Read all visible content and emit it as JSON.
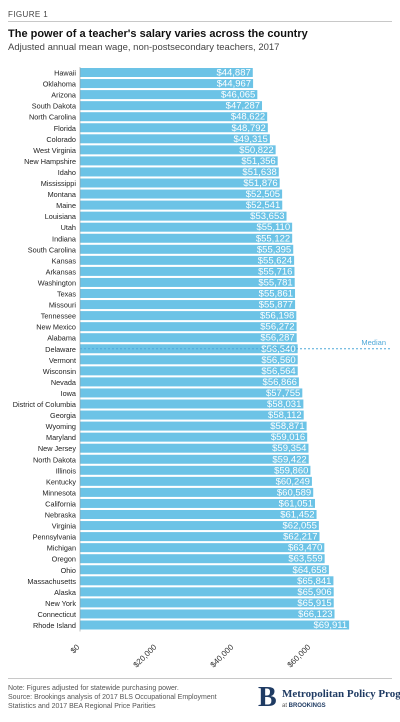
{
  "figure_label": "FIGURE 1",
  "title": "The power of a teacher's salary varies across the country",
  "subtitle": "Adjusted annual mean wage, non-postsecondary teachers, 2017",
  "note_lines": [
    "Note: Figures adjusted for statewide purchasing power.",
    "Source: Brookings analysis of 2017 BLS Occupational Employment",
    "Statistics and 2017 BEA Regional Price Parities"
  ],
  "brand": {
    "letter": "B",
    "name": "Metropolitan Policy Program",
    "sub_prefix": "at ",
    "sub_org": "BROOKINGS"
  },
  "colors": {
    "bar": "#6cc3e6",
    "median": "#4fa8d8",
    "label_on_bar": "#ffffff"
  },
  "chart_data": {
    "type": "bar",
    "orientation": "horizontal",
    "categories": [
      "Hawaii",
      "Oklahoma",
      "Arizona",
      "South Dakota",
      "North Carolina",
      "Florida",
      "Colorado",
      "West Virginia",
      "New Hampshire",
      "Idaho",
      "Mississippi",
      "Montana",
      "Maine",
      "Louisiana",
      "Utah",
      "Indiana",
      "South Carolina",
      "Kansas",
      "Arkansas",
      "Washington",
      "Texas",
      "Missouri",
      "Tennessee",
      "New Mexico",
      "Alabama",
      "Delaware",
      "Vermont",
      "Wisconsin",
      "Nevada",
      "Iowa",
      "District of Columbia",
      "Georgia",
      "Wyoming",
      "Maryland",
      "New Jersey",
      "North Dakota",
      "Illinois",
      "Kentucky",
      "Minnesota",
      "California",
      "Nebraska",
      "Virginia",
      "Pennsylvania",
      "Michigan",
      "Oregon",
      "Ohio",
      "Massachusetts",
      "Alaska",
      "New York",
      "Connecticut",
      "Rhode Island"
    ],
    "values": [
      44887,
      44967,
      46065,
      47287,
      48622,
      48792,
      49315,
      50822,
      51356,
      51638,
      51876,
      52505,
      52541,
      53653,
      55110,
      55122,
      55395,
      55624,
      55716,
      55781,
      55861,
      55877,
      56198,
      56272,
      56287,
      56540,
      56560,
      56564,
      56866,
      57755,
      58031,
      58112,
      58871,
      59016,
      59354,
      59422,
      59860,
      60249,
      60589,
      61051,
      61452,
      62055,
      62217,
      63470,
      63559,
      64658,
      65841,
      65906,
      65915,
      66123,
      69911
    ],
    "data_labels": [
      "$44,887",
      "$44,967",
      "$46,065",
      "$47,287",
      "$48,622",
      "$48,792",
      "$49,315",
      "$50,822",
      "$51,356",
      "$51,638",
      "$51,876",
      "$52,505",
      "$52,541",
      "$53,653",
      "$55,110",
      "$55,122",
      "$55,395",
      "$55,624",
      "$55,716",
      "$55,781",
      "$55,861",
      "$55,877",
      "$56,198",
      "$56,272",
      "$56,287",
      "$56,540",
      "$56,560",
      "$56,564",
      "$56,866",
      "$57,755",
      "$58,031",
      "$58,112",
      "$58,871",
      "$59,016",
      "$59,354",
      "$59,422",
      "$59,860",
      "$60,249",
      "$60,589",
      "$61,051",
      "$61,452",
      "$62,055",
      "$62,217",
      "$63,470",
      "$63,559",
      "$64,658",
      "$65,841",
      "$65,906",
      "$65,915",
      "$66,123",
      "$69,911"
    ],
    "xlim": [
      0,
      73000
    ],
    "ticks": [
      0,
      20000,
      40000,
      60000
    ],
    "tick_labels": [
      "$0",
      "$20,000",
      "$40,000",
      "$60,000"
    ],
    "median": {
      "label": "Median",
      "category": "Delaware",
      "value": 56540
    },
    "grid": false,
    "legend": "none"
  }
}
